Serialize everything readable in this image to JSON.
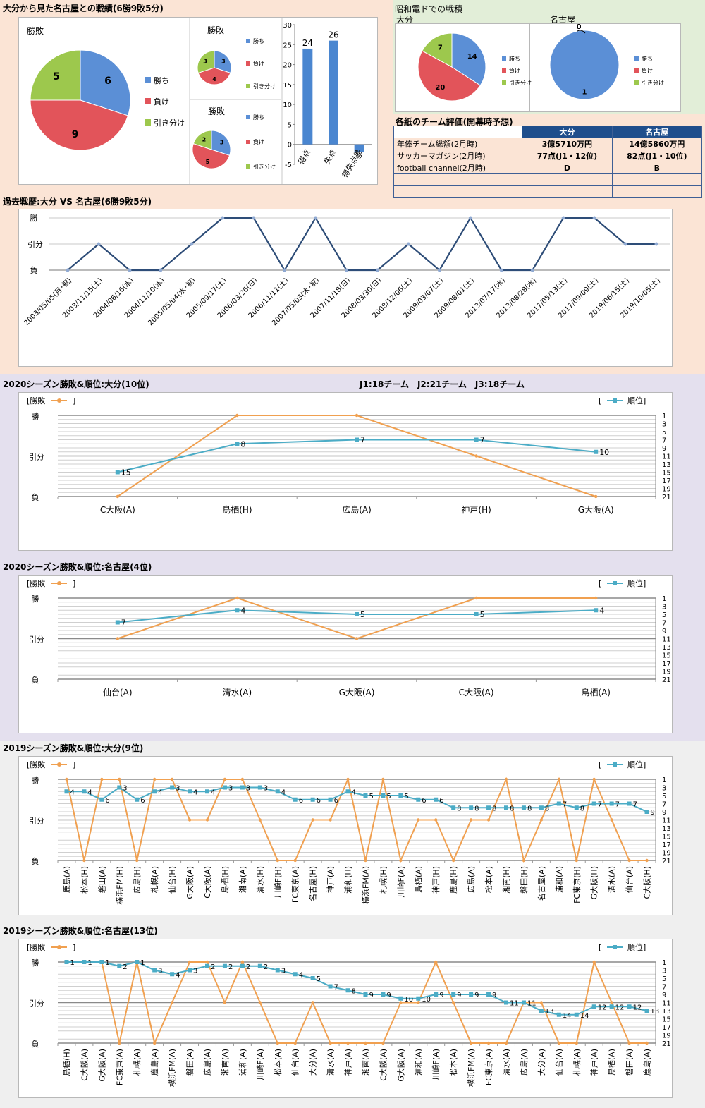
{
  "sections": {
    "head_to_head": "大分から見た名古屋との戦績(6勝9敗5分)",
    "showa": "昭和電ドでの戦積",
    "showa_oita": "大分",
    "showa_nagoya": "名古屋",
    "evaluation": "各紙のチーム評価(開幕時予想)",
    "history": "過去戦歴:大分 VS 名古屋(6勝9敗5分)",
    "s2020_oita": "2020シーズン勝敗&順位:大分(10位)",
    "league_info": "J1:18チーム　J2:21チーム　J3:18チーム",
    "s2020_nagoya": "2020シーズン勝敗&順位:名古屋(4位)",
    "s2019_oita": "2019シーズン勝敗&順位:大分(9位)",
    "s2019_nagoya": "2019シーズン勝敗&順位:名古屋(13位)"
  },
  "legend": {
    "win": "勝ち",
    "loss": "負け",
    "draw": "引き分け",
    "result": "勝敗",
    "rank": "順位"
  },
  "axis": {
    "win": "勝",
    "draw": "引分",
    "loss": "負"
  },
  "colors": {
    "win": "#5b8fd6",
    "loss": "#e2545a",
    "draw": "#9dc84d",
    "orange": "#f0a050",
    "teal": "#4bacc6",
    "navy": "#2e4d78",
    "bar": "#4a86d0"
  },
  "evaluation_table": {
    "headers": [
      "",
      "大分",
      "名古屋"
    ],
    "rows": [
      [
        "年俸チーム総額(2月時)",
        "3億5710万円",
        "14億5860万円"
      ],
      [
        "サッカーマガジン(2月時)",
        "77点(J1・12位)",
        "82点(J1・10位)"
      ],
      [
        "football channel(2月時)",
        "D",
        "B"
      ],
      [
        "",
        "",
        ""
      ],
      [
        "",
        "",
        ""
      ]
    ]
  },
  "chart_data": [
    {
      "id": "h2h_main",
      "type": "pie",
      "title": "勝敗",
      "labels": [
        "勝ち",
        "負け",
        "引き分け"
      ],
      "values": [
        6,
        9,
        5
      ]
    },
    {
      "id": "h2h_home",
      "type": "pie",
      "title": "勝敗",
      "labels": [
        "勝ち",
        "負け",
        "引き分け"
      ],
      "values": [
        3,
        4,
        3
      ]
    },
    {
      "id": "h2h_away",
      "type": "pie",
      "title": "勝敗",
      "labels": [
        "勝ち",
        "負け",
        "引き分け"
      ],
      "values": [
        3,
        5,
        2
      ]
    },
    {
      "id": "goals",
      "type": "bar",
      "categories": [
        "得点",
        "失点",
        "得失点差"
      ],
      "values": [
        24,
        26,
        -2
      ],
      "ylim": [
        -5,
        30
      ],
      "yticks": [
        -5,
        0,
        5,
        10,
        15,
        20,
        25,
        30
      ]
    },
    {
      "id": "showa_oita",
      "type": "pie",
      "labels": [
        "勝ち",
        "負け",
        "引き分け"
      ],
      "values": [
        14,
        20,
        7
      ]
    },
    {
      "id": "showa_nagoya",
      "type": "pie",
      "labels": [
        "勝ち",
        "負け",
        "引き分け"
      ],
      "values": [
        1,
        0,
        0
      ]
    },
    {
      "id": "history",
      "type": "line",
      "x": [
        "2003/05/05(月･祝)",
        "2003/11/15(土)",
        "2004/06/16(水)",
        "2004/11/10(水)",
        "2005/05/04(水･祝)",
        "2005/09/17(土)",
        "2006/03/26(日)",
        "2006/11/11(土)",
        "2007/05/03(木･祝)",
        "2007/11/18(日)",
        "2008/03/30(日)",
        "2008/12/06(土)",
        "2009/03/07(土)",
        "2009/08/01(土)",
        "2013/07/17(水)",
        "2013/08/28(水)",
        "2017/05/13(土)",
        "2017/09/09(土)",
        "2019/06/15(土)",
        "2019/10/05(土)"
      ],
      "results": [
        "負",
        "引分",
        "負",
        "負",
        "引分",
        "勝",
        "勝",
        "負",
        "勝",
        "負",
        "負",
        "引分",
        "負",
        "勝",
        "負",
        "負",
        "勝",
        "勝",
        "引分",
        "引分"
      ]
    },
    {
      "id": "s2020_oita",
      "type": "line",
      "categories": [
        "C大阪(A)",
        "鳥栖(H)",
        "広島(A)",
        "神戸(H)",
        "G大阪(A)"
      ],
      "results": [
        "負",
        "勝",
        "勝",
        "引分",
        "負"
      ],
      "ranks": [
        15,
        8,
        7,
        7,
        10
      ],
      "rank_axis": [
        1,
        3,
        5,
        7,
        9,
        11,
        13,
        15,
        17,
        19,
        21
      ]
    },
    {
      "id": "s2020_nagoya",
      "type": "line",
      "categories": [
        "仙台(A)",
        "清水(A)",
        "G大阪(A)",
        "C大阪(A)",
        "鳥栖(A)"
      ],
      "results": [
        "引分",
        "勝",
        "引分",
        "勝",
        "勝"
      ],
      "ranks": [
        7,
        4,
        5,
        5,
        4
      ],
      "rank_axis": [
        1,
        3,
        5,
        7,
        9,
        11,
        13,
        15,
        17,
        19,
        21
      ]
    },
    {
      "id": "s2019_oita",
      "type": "line",
      "categories": [
        "鹿島(A)",
        "松本(H)",
        "磐田(A)",
        "横浜FM(H)",
        "広島(H)",
        "札幌(A)",
        "仙台(H)",
        "G大阪(A)",
        "C大阪(A)",
        "鳥栖(H)",
        "湘南(A)",
        "清水(H)",
        "川崎F(H)",
        "FC東京(A)",
        "名古屋(H)",
        "神戸(A)",
        "浦和(H)",
        "横浜FM(A)",
        "札幌(H)",
        "川崎F(A)",
        "鳥栖(A)",
        "神戸(H)",
        "鹿島(H)",
        "広島(A)",
        "松本(A)",
        "湘南(H)",
        "磐田(H)",
        "名古屋(A)",
        "浦和(A)",
        "FC東京(H)",
        "G大阪(H)",
        "清水(A)",
        "仙台(A)",
        "C大阪(H)"
      ],
      "results": [
        "勝",
        "負",
        "勝",
        "勝",
        "負",
        "勝",
        "勝",
        "引分",
        "引分",
        "勝",
        "勝",
        "引分",
        "負",
        "負",
        "引分",
        "引分",
        "勝",
        "負",
        "勝",
        "負",
        "引分",
        "引分",
        "負",
        "引分",
        "引分",
        "勝",
        "負",
        "引分",
        "勝",
        "負",
        "勝",
        "引分",
        "負",
        "負"
      ],
      "ranks": [
        4,
        4,
        6,
        3,
        6,
        4,
        3,
        4,
        4,
        3,
        3,
        3,
        4,
        6,
        6,
        6,
        4,
        5,
        5,
        5,
        6,
        6,
        8,
        8,
        8,
        8,
        8,
        8,
        7,
        8,
        7,
        7,
        7,
        9
      ],
      "rank_axis": [
        1,
        3,
        5,
        7,
        9,
        11,
        13,
        15,
        17,
        19,
        21
      ]
    },
    {
      "id": "s2019_nagoya",
      "type": "line",
      "categories": [
        "鳥栖(H)",
        "C大阪(A)",
        "G大阪(A)",
        "FC東京(A)",
        "札幌(A)",
        "鹿島(A)",
        "横浜FM(A)",
        "磐田(A)",
        "広島(A)",
        "湘南(A)",
        "浦和(A)",
        "川崎F(A)",
        "松本(A)",
        "仙台(A)",
        "大分(A)",
        "清水(A)",
        "神戸(A)",
        "湘南(A)",
        "C大阪(A)",
        "G大阪(A)",
        "浦和(A)",
        "川崎F(A)",
        "松本(A)",
        "横浜FM(A)",
        "FC東京(A)",
        "清水(A)",
        "広島(A)",
        "大分(A)",
        "仙台(A)",
        "札幌(A)",
        "神戸(A)",
        "鳥栖(A)",
        "磐田(A)",
        "鹿島(A)"
      ],
      "results": [
        "勝",
        "勝",
        "勝",
        "負",
        "勝",
        "負",
        "引分",
        "勝",
        "勝",
        "引分",
        "勝",
        "引分",
        "負",
        "負",
        "引分",
        "負",
        "負",
        "負",
        "負",
        "引分",
        "引分",
        "勝",
        "引分",
        "負",
        "負",
        "負",
        "引分",
        "引分",
        "負",
        "負",
        "勝",
        "引分",
        "負",
        "負"
      ],
      "ranks": [
        1,
        1,
        1,
        2,
        1,
        3,
        4,
        3,
        2,
        2,
        2,
        2,
        3,
        4,
        5,
        7,
        8,
        9,
        9,
        10,
        10,
        9,
        9,
        9,
        9,
        11,
        11,
        13,
        14,
        14,
        12,
        12,
        12,
        13
      ],
      "rank_axis": [
        1,
        3,
        5,
        7,
        9,
        11,
        13,
        15,
        17,
        19,
        21
      ]
    }
  ]
}
